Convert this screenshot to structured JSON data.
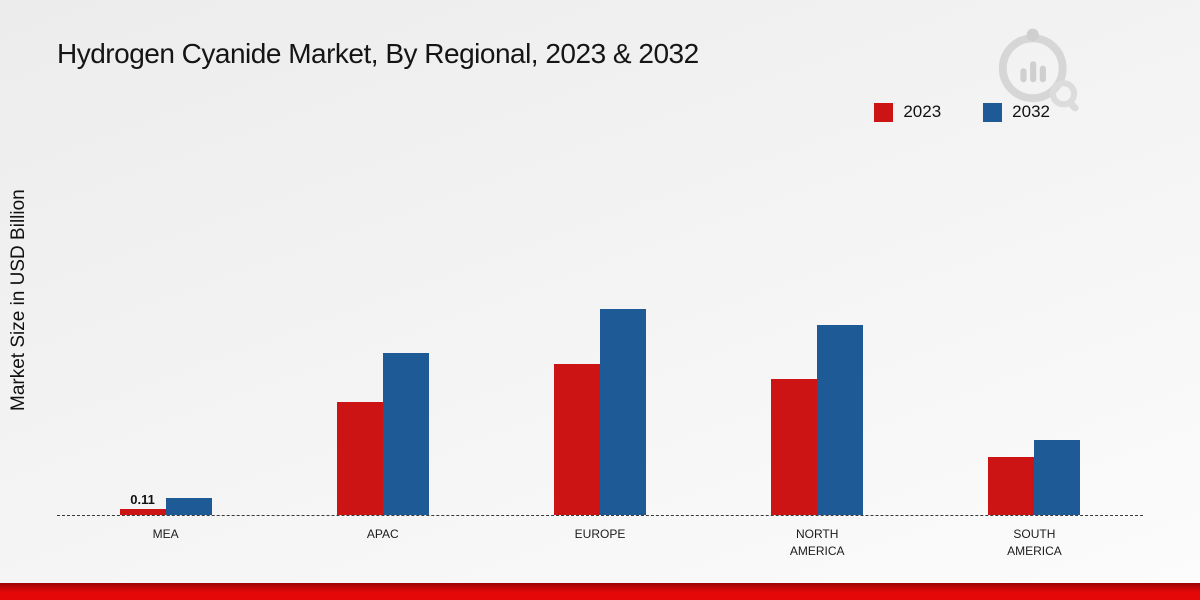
{
  "page": {
    "title": "Hydrogen Cyanide Market, By Regional, 2023 & 2032"
  },
  "chart_data": {
    "type": "bar",
    "title": "Hydrogen Cyanide Market, By Regional, 2023 & 2032",
    "ylabel": "Market Size in USD Billion",
    "xlabel": "",
    "categories": [
      "MEA",
      "APAC",
      "EUROPE",
      "NORTH AMERICA",
      "SOUTH AMERICA"
    ],
    "series": [
      {
        "name": "2023",
        "color": "#cc1414",
        "values": [
          0.11,
          2.05,
          2.75,
          2.48,
          1.06
        ]
      },
      {
        "name": "2032",
        "color": "#1e5a96",
        "values": [
          0.31,
          2.95,
          3.75,
          3.45,
          1.37
        ]
      }
    ],
    "annotations": [
      {
        "category": "MEA",
        "series": "2023",
        "text": "0.11"
      }
    ],
    "ylim": [
      0,
      4.2
    ],
    "grid": false,
    "legend_position": "top-right",
    "baseline_style": "dashed"
  },
  "logo": {
    "name": "brand-watermark-logo"
  },
  "footer": {
    "accent_color": "#e50808"
  }
}
